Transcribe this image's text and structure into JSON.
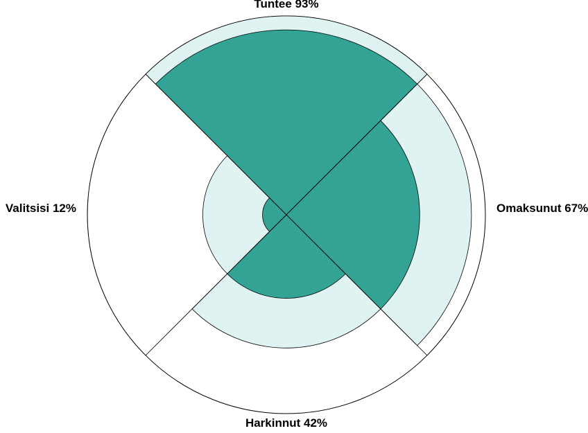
{
  "chart_data": {
    "type": "polar-funnel",
    "categories": [
      "Tuntee",
      "Omaksunut",
      "Harkinnut",
      "Valitsisi"
    ],
    "values": [
      93,
      67,
      42,
      12
    ],
    "value_labels": [
      "93%",
      "67%",
      "42%",
      "12%"
    ],
    "rlim": [
      0,
      100
    ],
    "color": "#33a396",
    "previous_color": "#dff3f3"
  }
}
